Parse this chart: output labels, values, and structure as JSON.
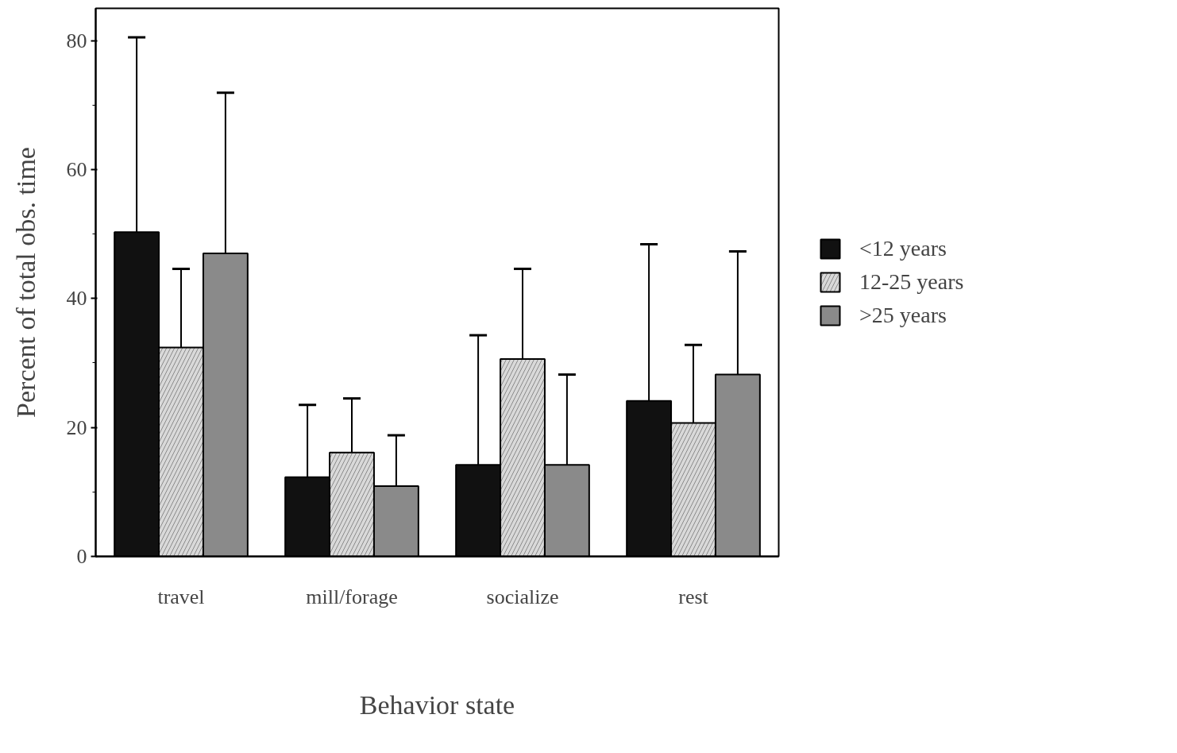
{
  "chart_data": {
    "type": "bar",
    "xlabel": "Behavior state",
    "ylabel": "Percent of total obs. time",
    "categories": [
      "travel",
      "mill/forage",
      "socialize",
      "rest"
    ],
    "series": [
      {
        "name": "<12 years",
        "color": "#111111",
        "values": [
          50.3,
          12.3,
          14.2,
          24.1
        ],
        "errors": [
          [
            50.3,
            80.5
          ],
          [
            12.3,
            23.5
          ],
          [
            14.2,
            34.3
          ],
          [
            24.1,
            48.4
          ]
        ]
      },
      {
        "name": "12-25 years",
        "color": "#d9d9d9",
        "values": [
          32.4,
          16.1,
          30.6,
          20.7
        ],
        "errors": [
          [
            32.4,
            44.6
          ],
          [
            16.1,
            24.5
          ],
          [
            30.6,
            44.6
          ],
          [
            20.7,
            32.8
          ]
        ]
      },
      {
        "name": ">25 years",
        "color": "#8a8a8a",
        "values": [
          47.0,
          10.9,
          14.2,
          28.2
        ],
        "errors": [
          [
            47.0,
            71.9
          ],
          [
            10.9,
            18.8
          ],
          [
            14.2,
            28.2
          ],
          [
            28.2,
            47.3
          ]
        ]
      }
    ],
    "ylim": [
      0,
      85
    ],
    "yticks": [
      0,
      20,
      40,
      60,
      80
    ],
    "grid": false,
    "legend": "right"
  }
}
